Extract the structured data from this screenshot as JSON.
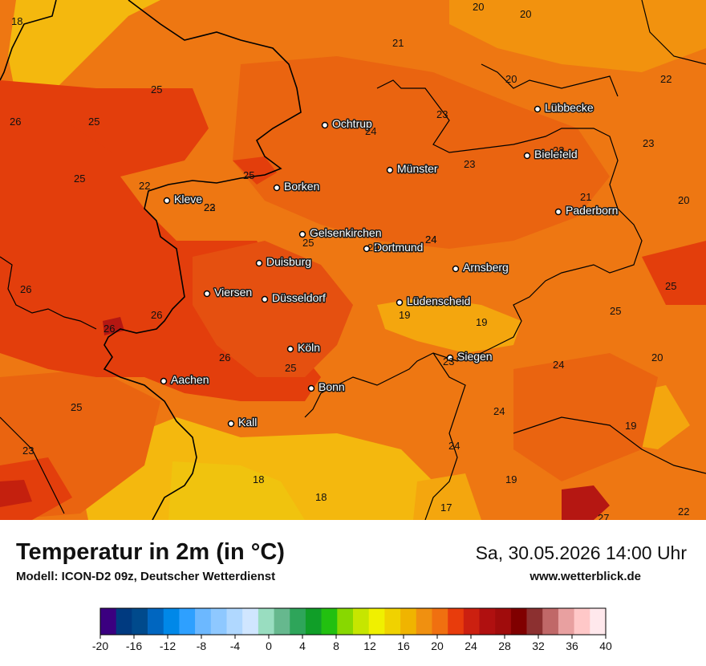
{
  "title": "Temperatur in 2m (in °C)",
  "model": "Modell: ICON-D2 09z, Deutscher Wetterdienst",
  "datetime": "Sa, 30.05.2026 14:00 Uhr",
  "website": "www.wetterblick.de",
  "cities": [
    {
      "name": "Lübbecke"
    },
    {
      "name": "Ochtrup"
    },
    {
      "name": "Bielefeld"
    },
    {
      "name": "Münster"
    },
    {
      "name": "Borken"
    },
    {
      "name": "Kleve"
    },
    {
      "name": "Paderborn"
    },
    {
      "name": "Gelsenkirchen"
    },
    {
      "name": "Dortmund"
    },
    {
      "name": "Duisburg"
    },
    {
      "name": "Arnsberg"
    },
    {
      "name": "Viersen"
    },
    {
      "name": "Düsseldorf"
    },
    {
      "name": "Lüdenscheid"
    },
    {
      "name": "Köln"
    },
    {
      "name": "Siegen"
    },
    {
      "name": "Aachen"
    },
    {
      "name": "Bonn"
    },
    {
      "name": "Kall"
    }
  ],
  "values": [
    "18",
    "20",
    "20",
    "21",
    "20",
    "22",
    "25",
    "26",
    "25",
    "23",
    "24",
    "23",
    "23",
    "23",
    "25",
    "25",
    "23",
    "22",
    "22",
    "21",
    "20",
    "25",
    "24",
    "24",
    "24",
    "26",
    "25",
    "26",
    "26",
    "19",
    "19",
    "25",
    "26",
    "25",
    "23",
    "24",
    "20",
    "25",
    "23",
    "24",
    "18",
    "18",
    "24",
    "19",
    "17",
    "19",
    "27",
    "22"
  ],
  "legend": {
    "colors": [
      "#3b0080",
      "#003a80",
      "#004a8c",
      "#0066c0",
      "#0088e8",
      "#2ea0ff",
      "#6cb8ff",
      "#8ec8ff",
      "#b0d8ff",
      "#d0e6ff",
      "#99ddc0",
      "#66b88e",
      "#2ea55a",
      "#109e28",
      "#22c010",
      "#88d800",
      "#c6e600",
      "#f0f000",
      "#f0d200",
      "#f0b400",
      "#f09010",
      "#f07010",
      "#e83c0c",
      "#cc2010",
      "#b01010",
      "#a00c0c",
      "#800000",
      "#8c3030",
      "#c06868",
      "#e8a0a0",
      "#ffc8c8",
      "#ffe8ec"
    ],
    "ticks": [
      "-20",
      "-16",
      "-12",
      "-8",
      "-4",
      "0",
      "4",
      "8",
      "12",
      "16",
      "20",
      "24",
      "28",
      "32",
      "36",
      "40"
    ]
  }
}
